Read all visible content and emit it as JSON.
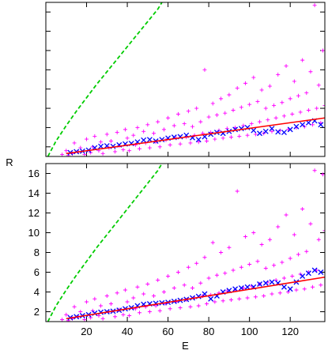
{
  "chart_data": [
    {
      "type": "scatter",
      "panel": "top",
      "xlim": [
        0,
        137
      ],
      "ylim": [
        1,
        17
      ],
      "xlabel": "",
      "ylabel": "",
      "x_ticks": [
        20,
        40,
        60,
        80,
        100,
        120
      ],
      "y_ticks": [
        2,
        4,
        6,
        8,
        10,
        12,
        14,
        16
      ],
      "x_tick_labels_shown": false,
      "y_tick_labels_shown": false,
      "grid": false,
      "colors": {
        "scatter": "#ff00ff",
        "average": "#0000ff",
        "fit": "#ff0000",
        "reference": "#00cc00"
      },
      "reference_curve": {
        "style": "dashed",
        "points": [
          [
            1,
            1.0
          ],
          [
            5,
            2.6
          ],
          [
            10,
            4.2
          ],
          [
            15,
            5.7
          ],
          [
            20,
            7.1
          ],
          [
            25,
            8.5
          ],
          [
            30,
            9.8
          ],
          [
            35,
            11.1
          ],
          [
            40,
            12.4
          ],
          [
            45,
            13.7
          ],
          [
            50,
            15.0
          ],
          [
            55,
            16.3
          ],
          [
            57,
            17.0
          ]
        ]
      },
      "fit_line": {
        "points": [
          [
            10,
            1.3
          ],
          [
            137,
            5.0
          ]
        ]
      },
      "average_points": [
        [
          12,
          1.4
        ],
        [
          15,
          1.5
        ],
        [
          18,
          1.55
        ],
        [
          21,
          1.65
        ],
        [
          24,
          1.9
        ],
        [
          27,
          2.05
        ],
        [
          30,
          2.1
        ],
        [
          33,
          2.05
        ],
        [
          36,
          2.2
        ],
        [
          39,
          2.3
        ],
        [
          42,
          2.35
        ],
        [
          45,
          2.5
        ],
        [
          48,
          2.7
        ],
        [
          51,
          2.75
        ],
        [
          54,
          2.6
        ],
        [
          57,
          2.75
        ],
        [
          60,
          2.9
        ],
        [
          63,
          3.0
        ],
        [
          66,
          3.05
        ],
        [
          69,
          3.2
        ],
        [
          72,
          2.95
        ],
        [
          75,
          2.75
        ],
        [
          78,
          3.05
        ],
        [
          81,
          3.3
        ],
        [
          84,
          3.5
        ],
        [
          87,
          3.4
        ],
        [
          90,
          3.6
        ],
        [
          93,
          3.8
        ],
        [
          96,
          3.9
        ],
        [
          99,
          4.0
        ],
        [
          102,
          3.7
        ],
        [
          105,
          3.4
        ],
        [
          108,
          3.6
        ],
        [
          111,
          3.9
        ],
        [
          114,
          3.55
        ],
        [
          117,
          3.5
        ],
        [
          120,
          3.8
        ],
        [
          123,
          4.1
        ],
        [
          126,
          4.3
        ],
        [
          129,
          4.5
        ],
        [
          132,
          4.7
        ],
        [
          135,
          4.3
        ]
      ],
      "scatter_points": [
        [
          8,
          1.2
        ],
        [
          10,
          1.6
        ],
        [
          11,
          1.1
        ],
        [
          13,
          1.3
        ],
        [
          14,
          2.4
        ],
        [
          16,
          1.5
        ],
        [
          17,
          1.9
        ],
        [
          19,
          1.2
        ],
        [
          20,
          2.8
        ],
        [
          22,
          1.4
        ],
        [
          23,
          2.0
        ],
        [
          24,
          3.1
        ],
        [
          26,
          1.6
        ],
        [
          27,
          2.5
        ],
        [
          28,
          1.3
        ],
        [
          30,
          3.3
        ],
        [
          31,
          1.9
        ],
        [
          32,
          2.6
        ],
        [
          34,
          1.5
        ],
        [
          35,
          3.5
        ],
        [
          36,
          2.1
        ],
        [
          38,
          1.7
        ],
        [
          39,
          3.8
        ],
        [
          40,
          2.9
        ],
        [
          41,
          1.6
        ],
        [
          43,
          3.2
        ],
        [
          44,
          2.2
        ],
        [
          45,
          4.0
        ],
        [
          46,
          1.8
        ],
        [
          48,
          3.6
        ],
        [
          49,
          2.4
        ],
        [
          50,
          4.3
        ],
        [
          51,
          1.9
        ],
        [
          53,
          3.4
        ],
        [
          54,
          2.5
        ],
        [
          55,
          4.6
        ],
        [
          56,
          2.0
        ],
        [
          58,
          3.8
        ],
        [
          59,
          2.7
        ],
        [
          60,
          5.0
        ],
        [
          61,
          2.2
        ],
        [
          63,
          4.2
        ],
        [
          64,
          2.9
        ],
        [
          65,
          5.4
        ],
        [
          66,
          2.3
        ],
        [
          68,
          4.4
        ],
        [
          69,
          3.0
        ],
        [
          70,
          5.7
        ],
        [
          71,
          2.4
        ],
        [
          72,
          4.1
        ],
        [
          73,
          3.2
        ],
        [
          74,
          6.0
        ],
        [
          75,
          2.5
        ],
        [
          76,
          4.6
        ],
        [
          77,
          3.4
        ],
        [
          78,
          10.0
        ],
        [
          79,
          2.6
        ],
        [
          80,
          5.1
        ],
        [
          81,
          3.5
        ],
        [
          82,
          6.5
        ],
        [
          83,
          2.8
        ],
        [
          84,
          5.3
        ],
        [
          85,
          3.7
        ],
        [
          86,
          7.0
        ],
        [
          87,
          2.9
        ],
        [
          88,
          5.5
        ],
        [
          89,
          3.9
        ],
        [
          90,
          7.4
        ],
        [
          91,
          3.0
        ],
        [
          92,
          5.8
        ],
        [
          93,
          4.0
        ],
        [
          94,
          8.1
        ],
        [
          95,
          3.1
        ],
        [
          96,
          6.1
        ],
        [
          97,
          4.2
        ],
        [
          98,
          8.6
        ],
        [
          99,
          3.2
        ],
        [
          100,
          6.4
        ],
        [
          101,
          4.4
        ],
        [
          102,
          9.2
        ],
        [
          103,
          3.3
        ],
        [
          104,
          6.7
        ],
        [
          105,
          4.6
        ],
        [
          106,
          7.9
        ],
        [
          107,
          3.4
        ],
        [
          108,
          6.0
        ],
        [
          109,
          4.8
        ],
        [
          110,
          8.3
        ],
        [
          111,
          3.6
        ],
        [
          112,
          6.3
        ],
        [
          113,
          5.0
        ],
        [
          114,
          9.5
        ],
        [
          115,
          3.7
        ],
        [
          116,
          6.6
        ],
        [
          117,
          5.2
        ],
        [
          118,
          10.4
        ],
        [
          119,
          3.8
        ],
        [
          120,
          7.0
        ],
        [
          121,
          5.4
        ],
        [
          122,
          8.8
        ],
        [
          123,
          4.0
        ],
        [
          124,
          7.3
        ],
        [
          125,
          5.6
        ],
        [
          126,
          11.0
        ],
        [
          127,
          4.1
        ],
        [
          128,
          7.6
        ],
        [
          129,
          5.8
        ],
        [
          130,
          9.8
        ],
        [
          131,
          4.3
        ],
        [
          132,
          16.7
        ],
        [
          133,
          6.0
        ],
        [
          134,
          8.4
        ],
        [
          135,
          4.5
        ],
        [
          136,
          12.0
        ],
        [
          137,
          6.3
        ]
      ]
    },
    {
      "type": "scatter",
      "panel": "bottom",
      "xlim": [
        0,
        137
      ],
      "ylim": [
        1,
        17
      ],
      "xlabel": "E",
      "ylabel": "R",
      "x_ticks": [
        20,
        40,
        60,
        80,
        100,
        120
      ],
      "y_ticks": [
        2,
        4,
        6,
        8,
        10,
        12,
        14,
        16
      ],
      "x_tick_labels": [
        "20",
        "40",
        "60",
        "80",
        "100",
        "120"
      ],
      "y_tick_labels": [
        "2",
        "4",
        "6",
        "8",
        "10",
        "12",
        "14",
        "16"
      ],
      "grid": false,
      "colors": {
        "scatter": "#ff00ff",
        "average": "#0000ff",
        "fit": "#ff0000",
        "reference": "#00cc00"
      },
      "reference_curve": {
        "style": "dashed",
        "points": [
          [
            1,
            1.0
          ],
          [
            5,
            2.6
          ],
          [
            10,
            4.2
          ],
          [
            15,
            5.7
          ],
          [
            20,
            7.1
          ],
          [
            25,
            8.5
          ],
          [
            30,
            9.8
          ],
          [
            35,
            11.1
          ],
          [
            40,
            12.4
          ],
          [
            45,
            13.7
          ],
          [
            50,
            15.0
          ],
          [
            55,
            16.3
          ],
          [
            57,
            17.0
          ]
        ]
      },
      "fit_line": {
        "points": [
          [
            10,
            1.3
          ],
          [
            137,
            5.5
          ]
        ]
      },
      "average_points": [
        [
          12,
          1.4
        ],
        [
          15,
          1.5
        ],
        [
          18,
          1.6
        ],
        [
          21,
          1.7
        ],
        [
          24,
          1.85
        ],
        [
          27,
          1.95
        ],
        [
          30,
          2.0
        ],
        [
          33,
          2.05
        ],
        [
          36,
          2.15
        ],
        [
          39,
          2.3
        ],
        [
          42,
          2.4
        ],
        [
          45,
          2.6
        ],
        [
          48,
          2.75
        ],
        [
          51,
          2.8
        ],
        [
          54,
          2.85
        ],
        [
          57,
          2.9
        ],
        [
          60,
          2.95
        ],
        [
          63,
          3.05
        ],
        [
          66,
          3.15
        ],
        [
          69,
          3.25
        ],
        [
          72,
          3.4
        ],
        [
          75,
          3.55
        ],
        [
          78,
          3.8
        ],
        [
          81,
          3.3
        ],
        [
          84,
          3.6
        ],
        [
          87,
          4.0
        ],
        [
          90,
          4.15
        ],
        [
          93,
          4.3
        ],
        [
          96,
          4.4
        ],
        [
          99,
          4.5
        ],
        [
          102,
          4.5
        ],
        [
          105,
          4.8
        ],
        [
          108,
          4.9
        ],
        [
          111,
          5.0
        ],
        [
          114,
          4.9
        ],
        [
          117,
          4.5
        ],
        [
          120,
          4.3
        ],
        [
          123,
          5.0
        ],
        [
          126,
          5.6
        ],
        [
          129,
          5.9
        ],
        [
          132,
          6.2
        ],
        [
          135,
          6.0
        ]
      ],
      "scatter_points": [
        [
          8,
          1.2
        ],
        [
          10,
          1.7
        ],
        [
          11,
          1.1
        ],
        [
          13,
          1.3
        ],
        [
          14,
          2.5
        ],
        [
          16,
          1.5
        ],
        [
          17,
          2.0
        ],
        [
          19,
          1.2
        ],
        [
          20,
          3.0
        ],
        [
          22,
          1.4
        ],
        [
          23,
          2.1
        ],
        [
          24,
          3.3
        ],
        [
          26,
          1.6
        ],
        [
          27,
          2.6
        ],
        [
          28,
          1.3
        ],
        [
          30,
          3.6
        ],
        [
          31,
          2.0
        ],
        [
          32,
          2.8
        ],
        [
          34,
          1.5
        ],
        [
          35,
          3.9
        ],
        [
          36,
          2.2
        ],
        [
          38,
          1.7
        ],
        [
          39,
          4.2
        ],
        [
          40,
          3.0
        ],
        [
          41,
          1.6
        ],
        [
          43,
          3.4
        ],
        [
          44,
          2.3
        ],
        [
          45,
          4.5
        ],
        [
          46,
          1.9
        ],
        [
          48,
          3.8
        ],
        [
          49,
          2.5
        ],
        [
          50,
          4.8
        ],
        [
          51,
          2.0
        ],
        [
          53,
          3.6
        ],
        [
          54,
          2.6
        ],
        [
          55,
          5.2
        ],
        [
          56,
          2.1
        ],
        [
          58,
          4.0
        ],
        [
          59,
          2.8
        ],
        [
          60,
          5.6
        ],
        [
          61,
          2.3
        ],
        [
          63,
          4.4
        ],
        [
          64,
          3.0
        ],
        [
          65,
          6.0
        ],
        [
          66,
          2.4
        ],
        [
          68,
          4.7
        ],
        [
          69,
          3.2
        ],
        [
          70,
          6.5
        ],
        [
          71,
          2.5
        ],
        [
          72,
          4.4
        ],
        [
          73,
          3.4
        ],
        [
          74,
          6.9
        ],
        [
          75,
          2.6
        ],
        [
          76,
          4.9
        ],
        [
          77,
          3.6
        ],
        [
          78,
          7.5
        ],
        [
          79,
          2.8
        ],
        [
          80,
          5.4
        ],
        [
          81,
          3.7
        ],
        [
          82,
          9.0
        ],
        [
          83,
          3.0
        ],
        [
          84,
          5.7
        ],
        [
          85,
          3.9
        ],
        [
          86,
          8.0
        ],
        [
          87,
          3.1
        ],
        [
          88,
          5.9
        ],
        [
          89,
          4.1
        ],
        [
          90,
          8.5
        ],
        [
          91,
          3.2
        ],
        [
          92,
          6.2
        ],
        [
          93,
          4.2
        ],
        [
          94,
          14.2
        ],
        [
          95,
          3.3
        ],
        [
          96,
          6.5
        ],
        [
          97,
          4.4
        ],
        [
          98,
          9.6
        ],
        [
          99,
          3.4
        ],
        [
          100,
          6.8
        ],
        [
          101,
          4.6
        ],
        [
          102,
          10.0
        ],
        [
          103,
          3.5
        ],
        [
          104,
          7.1
        ],
        [
          105,
          4.8
        ],
        [
          106,
          8.8
        ],
        [
          107,
          3.6
        ],
        [
          108,
          6.4
        ],
        [
          109,
          5.0
        ],
        [
          110,
          9.3
        ],
        [
          111,
          3.8
        ],
        [
          112,
          6.7
        ],
        [
          113,
          5.2
        ],
        [
          114,
          10.6
        ],
        [
          115,
          3.9
        ],
        [
          116,
          7.0
        ],
        [
          117,
          5.4
        ],
        [
          118,
          11.8
        ],
        [
          119,
          4.0
        ],
        [
          120,
          7.4
        ],
        [
          121,
          5.6
        ],
        [
          122,
          9.8
        ],
        [
          123,
          4.2
        ],
        [
          124,
          7.8
        ],
        [
          125,
          5.8
        ],
        [
          126,
          12.4
        ],
        [
          127,
          4.3
        ],
        [
          128,
          8.1
        ],
        [
          129,
          6.0
        ],
        [
          130,
          10.9
        ],
        [
          131,
          4.5
        ],
        [
          132,
          16.3
        ],
        [
          133,
          6.2
        ],
        [
          134,
          9.3
        ],
        [
          135,
          4.7
        ],
        [
          136,
          15.9
        ],
        [
          137,
          10.2
        ]
      ]
    }
  ]
}
